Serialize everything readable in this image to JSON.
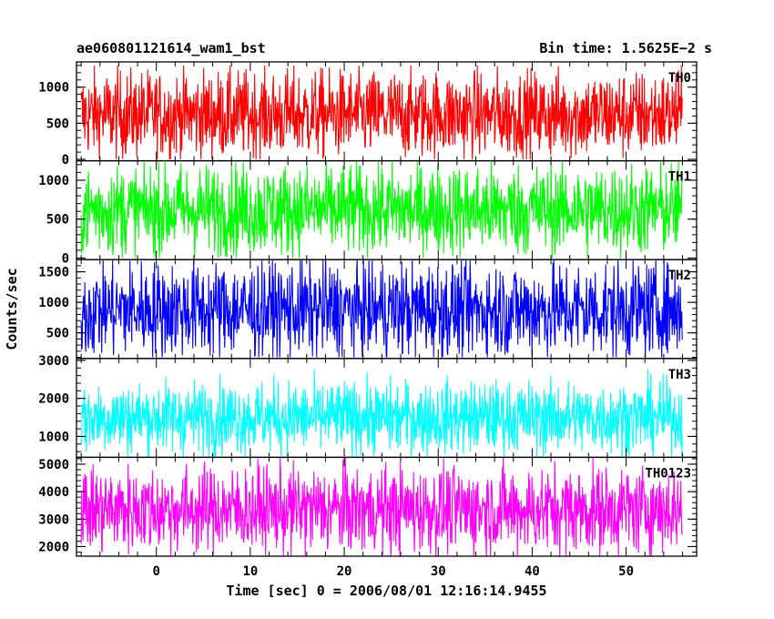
{
  "chart_data": {
    "type": "line",
    "title": "ae060801121614_wam1_bst",
    "subtitle": "Bin time: 1.5625E−2 s",
    "xlabel": "Time [sec] 0 = 2006/08/01 12:16:14.9455",
    "ylabel": "Counts/sec",
    "xlim": [
      -8.5,
      57.5
    ],
    "data_range": [
      -8,
      56
    ],
    "xticks": [
      0,
      10,
      20,
      30,
      40,
      50
    ],
    "xtick_labels": [
      "0",
      "10",
      "20",
      "30",
      "40",
      "50"
    ],
    "panels": [
      {
        "name": "TH0",
        "color": "#ff0000",
        "ylim": [
          -20,
          1350
        ],
        "yticks": [
          0,
          500,
          1000
        ],
        "ytick_labels": [
          "0",
          "500",
          "1000"
        ],
        "mean": 620,
        "spread": 300,
        "min": 0,
        "max": 1300
      },
      {
        "name": "TH1",
        "color": "#00ff00",
        "ylim": [
          -20,
          1250
        ],
        "yticks": [
          0,
          500,
          1000
        ],
        "ytick_labels": [
          "0",
          "500",
          "1000"
        ],
        "mean": 620,
        "spread": 290,
        "min": 0,
        "max": 1250
      },
      {
        "name": "TH2",
        "color": "#0000ff",
        "ylim": [
          80,
          1700
        ],
        "yticks": [
          500,
          1000,
          1500
        ],
        "ytick_labels": [
          "500",
          "1000",
          "1500"
        ],
        "mean": 880,
        "spread": 390,
        "min": 100,
        "max": 1700
      },
      {
        "name": "TH3",
        "color": "#00ffff",
        "ylim": [
          450,
          3050
        ],
        "yticks": [
          1000,
          2000,
          3000
        ],
        "ytick_labels": [
          "1000",
          "2000",
          "3000"
        ],
        "mean": 1500,
        "spread": 470,
        "min": 450,
        "max": 3050
      },
      {
        "name": "TH0123",
        "color": "#ff00ff",
        "ylim": [
          1650,
          5250
        ],
        "yticks": [
          2000,
          3000,
          4000,
          5000
        ],
        "ytick_labels": [
          "2000",
          "3000",
          "4000",
          "5000"
        ],
        "mean": 3350,
        "spread": 780,
        "min": 1650,
        "max": 5250
      }
    ]
  }
}
